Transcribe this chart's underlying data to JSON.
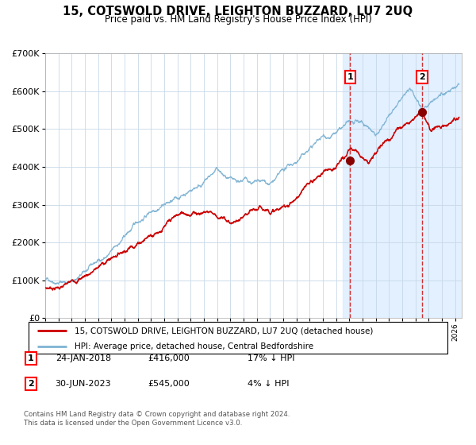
{
  "title": "15, COTSWOLD DRIVE, LEIGHTON BUZZARD, LU7 2UQ",
  "subtitle": "Price paid vs. HM Land Registry's House Price Index (HPI)",
  "legend_line1": "15, COTSWOLD DRIVE, LEIGHTON BUZZARD, LU7 2UQ (detached house)",
  "legend_line2": "HPI: Average price, detached house, Central Bedfordshire",
  "footnote": "Contains HM Land Registry data © Crown copyright and database right 2024.\nThis data is licensed under the Open Government Licence v3.0.",
  "table_rows": [
    {
      "num": "1",
      "date": "24-JAN-2018",
      "price": "£416,000",
      "hpi": "17% ↓ HPI"
    },
    {
      "num": "2",
      "date": "30-JUN-2023",
      "price": "£545,000",
      "hpi": "4% ↓ HPI"
    }
  ],
  "red_color": "#cc0000",
  "blue_color": "#7fb3d3",
  "bg_shade_color": "#ddeeff",
  "marker_color": "#880000",
  "vline_color": "#cc0000",
  "grid_color": "#c8d8e8",
  "ylim": [
    0,
    700000
  ],
  "xlim_start": 1995.0,
  "xlim_end": 2026.5,
  "point1_x": 2018.07,
  "point1_y": 416000,
  "point2_x": 2023.5,
  "point2_y": 545000,
  "shade_start": 2017.5,
  "shade_end": 2026.5,
  "yticks": [
    0,
    100000,
    200000,
    300000,
    400000,
    500000,
    600000,
    700000
  ]
}
